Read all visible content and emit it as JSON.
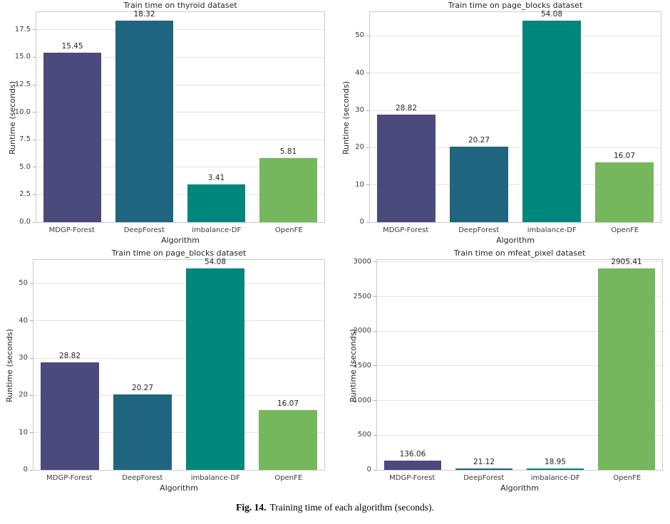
{
  "caption": {
    "label": "Fig. 14.",
    "text": "Training time of each algorithm (seconds)."
  },
  "palette": {
    "mdgp_forest": "#4b4a7d",
    "deep_forest": "#20657f",
    "imbalance_df": "#00877c",
    "open_fe": "#75b75d",
    "grid": "#e4e4e4",
    "spine": "#cbcbcb",
    "text": "#262626",
    "background": "#ffffff"
  },
  "chart_data": [
    {
      "type": "bar",
      "title": "Train time on thyroid dataset",
      "xlabel": "Algorithm",
      "ylabel": "Runtime (seconds)",
      "categories": [
        "MDGP-Forest",
        "DeepForest",
        "imbalance-DF",
        "OpenFE"
      ],
      "values": [
        15.45,
        18.32,
        3.41,
        5.81
      ],
      "value_labels": [
        "15.45",
        "18.32",
        "3.41",
        "5.81"
      ],
      "bar_colors": [
        "#4b4a7d",
        "#20657f",
        "#00877c",
        "#75b75d"
      ],
      "yticks": [
        0,
        2.5,
        5,
        7.5,
        10,
        12.5,
        15,
        17.5
      ],
      "ytick_labels": [
        "0.0",
        "2.5",
        "5.0",
        "7.5",
        "10.0",
        "12.5",
        "15.0",
        "17.5"
      ],
      "ylim": [
        0,
        19.24
      ],
      "grid": true,
      "layout": {
        "margin_left": 50,
        "margin_right": 14
      }
    },
    {
      "type": "bar",
      "title": "Train time on page_blocks dataset",
      "xlabel": "Algorithm",
      "ylabel": "Runtime (seconds)",
      "categories": [
        "MDGP-Forest",
        "DeepForest",
        "imbalance-DF",
        "OpenFE"
      ],
      "values": [
        28.82,
        20.27,
        54.08,
        16.07
      ],
      "value_labels": [
        "28.82",
        "20.27",
        "54.08",
        "16.07"
      ],
      "bar_colors": [
        "#4b4a7d",
        "#20657f",
        "#00877c",
        "#75b75d"
      ],
      "yticks": [
        0,
        10,
        20,
        30,
        40,
        50
      ],
      "ytick_labels": [
        "0",
        "10",
        "20",
        "30",
        "40",
        "50"
      ],
      "ylim": [
        0,
        56.78
      ],
      "grid": true,
      "layout": {
        "margin_left": 48,
        "margin_right": 12
      }
    },
    {
      "type": "bar",
      "title": "Train time on page_blocks dataset",
      "xlabel": "Algorithm",
      "ylabel": "Runtime (seconds)",
      "categories": [
        "MDGP-Forest",
        "DeepForest",
        "imbalance-DF",
        "OpenFE"
      ],
      "values": [
        28.82,
        20.27,
        54.08,
        16.07
      ],
      "value_labels": [
        "28.82",
        "20.27",
        "54.08",
        "16.07"
      ],
      "bar_colors": [
        "#4b4a7d",
        "#20657f",
        "#00877c",
        "#75b75d"
      ],
      "yticks": [
        0,
        10,
        20,
        30,
        40,
        50
      ],
      "ytick_labels": [
        "0",
        "10",
        "20",
        "30",
        "40",
        "50"
      ],
      "ylim": [
        0,
        56.78
      ],
      "grid": true,
      "layout": {
        "margin_left": 46,
        "margin_right": 14
      }
    },
    {
      "type": "bar",
      "title": "Train time on mfeat_pixel dataset",
      "xlabel": "Algorithm",
      "ylabel": "Runtime (seconds)",
      "categories": [
        "MDGP-Forest",
        "DeepForest",
        "imbalance-DF",
        "OpenFE"
      ],
      "values": [
        136.06,
        21.12,
        18.95,
        2905.41
      ],
      "value_labels": [
        "136.06",
        "21.12",
        "18.95",
        "2905.41"
      ],
      "bar_colors": [
        "#4b4a7d",
        "#20657f",
        "#00877c",
        "#75b75d"
      ],
      "yticks": [
        0,
        500,
        1000,
        1500,
        2000,
        2500,
        3000
      ],
      "ytick_labels": [
        "0",
        "500",
        "1000",
        "1500",
        "2000",
        "2500",
        "3000"
      ],
      "ylim": [
        0,
        3050.68
      ],
      "grid": true,
      "layout": {
        "margin_left": 58,
        "margin_right": 10
      }
    }
  ]
}
